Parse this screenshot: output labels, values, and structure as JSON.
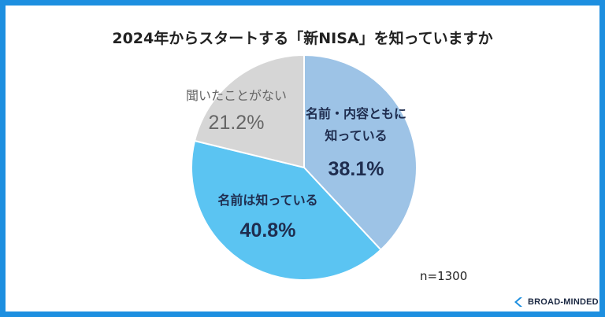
{
  "title": "2024年からスタートする「新NISA」を知っていますか",
  "note": "n=1300",
  "brand": {
    "name": "BROAD-MINDED",
    "logo_icon": "bm-logo-icon",
    "logo_color": "#1d8fe0"
  },
  "frame_color": "#1d8fe0",
  "chart_data": {
    "type": "pie",
    "title": "2024年からスタートする「新NISA」を知っていますか",
    "slices": [
      {
        "label_lines": [
          "名前・内容ともに",
          "知っている"
        ],
        "value": 38.1,
        "value_label": "38.1%",
        "color": "#9dc3e6",
        "text_color": "#1f2d4f"
      },
      {
        "label_lines": [
          "名前は知っている"
        ],
        "value": 40.8,
        "value_label": "40.8%",
        "color": "#5bc4f2",
        "text_color": "#1f2d4f"
      },
      {
        "label_lines": [
          "聞いたことがない"
        ],
        "value": 21.2,
        "value_label": "21.2%",
        "color": "#d6d6d6",
        "text_color": "#666666"
      }
    ],
    "start_angle_deg": 0,
    "direction": "clockwise",
    "legend": "none"
  }
}
